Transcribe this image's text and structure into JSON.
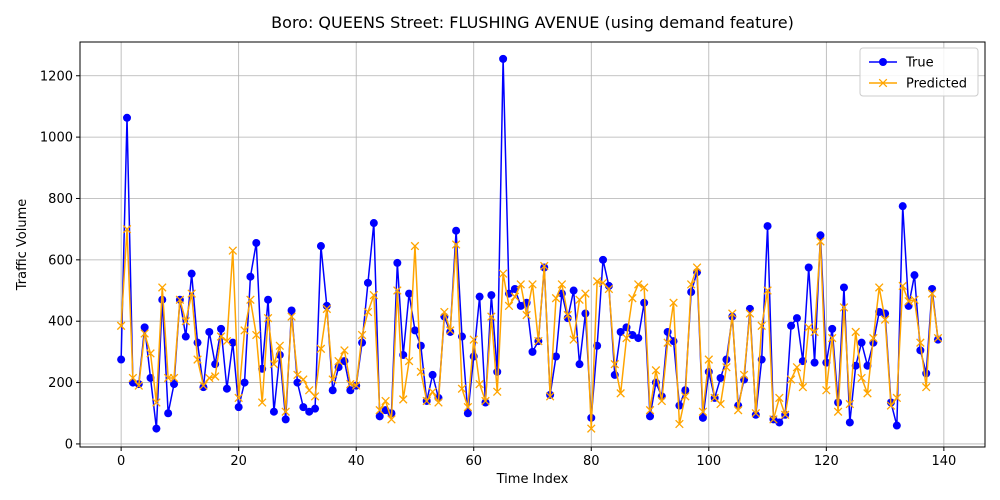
{
  "chart_data": {
    "type": "line",
    "title": "Boro: QUEENS Street: FLUSHING AVENUE (using demand feature)",
    "xlabel": "Time Index",
    "ylabel": "Traffic Volume",
    "xlim": [
      -7,
      147
    ],
    "ylim": [
      -10,
      1310
    ],
    "xticks": [
      0,
      20,
      40,
      60,
      80,
      100,
      120,
      140
    ],
    "yticks": [
      0,
      200,
      400,
      600,
      800,
      1000,
      1200
    ],
    "grid": true,
    "legend_position": "top-right",
    "series": [
      {
        "name": "True",
        "color": "#0000ff",
        "marker": "circle",
        "values": [
          275,
          1063,
          200,
          195,
          380,
          215,
          50,
          470,
          100,
          195,
          470,
          350,
          555,
          330,
          185,
          365,
          260,
          375,
          180,
          330,
          120,
          200,
          545,
          655,
          245,
          470,
          105,
          290,
          80,
          435,
          200,
          120,
          105,
          115,
          645,
          450,
          175,
          250,
          270,
          175,
          190,
          330,
          525,
          720,
          90,
          110,
          100,
          590,
          290,
          490,
          370,
          320,
          140,
          225,
          150,
          415,
          365,
          695,
          350,
          100,
          285,
          480,
          135,
          485,
          235,
          1255,
          490,
          505,
          450,
          460,
          300,
          335,
          575,
          160,
          285,
          490,
          410,
          500,
          260,
          425,
          85,
          320,
          600,
          515,
          225,
          365,
          380,
          355,
          345,
          460,
          90,
          200,
          155,
          365,
          335,
          125,
          175,
          495,
          560,
          85,
          235,
          150,
          215,
          275,
          415,
          125,
          210,
          440,
          95,
          275,
          710,
          80,
          70,
          95,
          385,
          410,
          270,
          575,
          265,
          680,
          265,
          375,
          135,
          510,
          70,
          255,
          330,
          255,
          330,
          430,
          425,
          135,
          60,
          775,
          450,
          550,
          305,
          230,
          505,
          340
        ]
      },
      {
        "name": "Predicted",
        "color": "#ffa500",
        "marker": "x",
        "values": [
          385,
          700,
          215,
          190,
          360,
          295,
          135,
          510,
          215,
          215,
          470,
          400,
          490,
          275,
          190,
          215,
          220,
          350,
          335,
          630,
          150,
          370,
          470,
          355,
          135,
          410,
          260,
          320,
          105,
          415,
          225,
          210,
          175,
          155,
          310,
          440,
          210,
          270,
          305,
          195,
          190,
          355,
          430,
          485,
          110,
          140,
          80,
          500,
          145,
          270,
          645,
          235,
          140,
          170,
          135,
          430,
          370,
          650,
          180,
          120,
          340,
          195,
          140,
          415,
          170,
          555,
          450,
          480,
          520,
          420,
          520,
          335,
          580,
          155,
          475,
          520,
          420,
          340,
          470,
          490,
          50,
          530,
          525,
          505,
          260,
          165,
          345,
          475,
          520,
          510,
          110,
          240,
          140,
          330,
          460,
          65,
          155,
          520,
          575,
          105,
          275,
          150,
          130,
          250,
          425,
          110,
          225,
          425,
          100,
          385,
          500,
          80,
          150,
          95,
          210,
          250,
          185,
          380,
          365,
          660,
          175,
          345,
          105,
          445,
          130,
          365,
          215,
          165,
          345,
          510,
          405,
          125,
          150,
          515,
          465,
          470,
          330,
          185,
          490,
          345
        ]
      }
    ]
  }
}
